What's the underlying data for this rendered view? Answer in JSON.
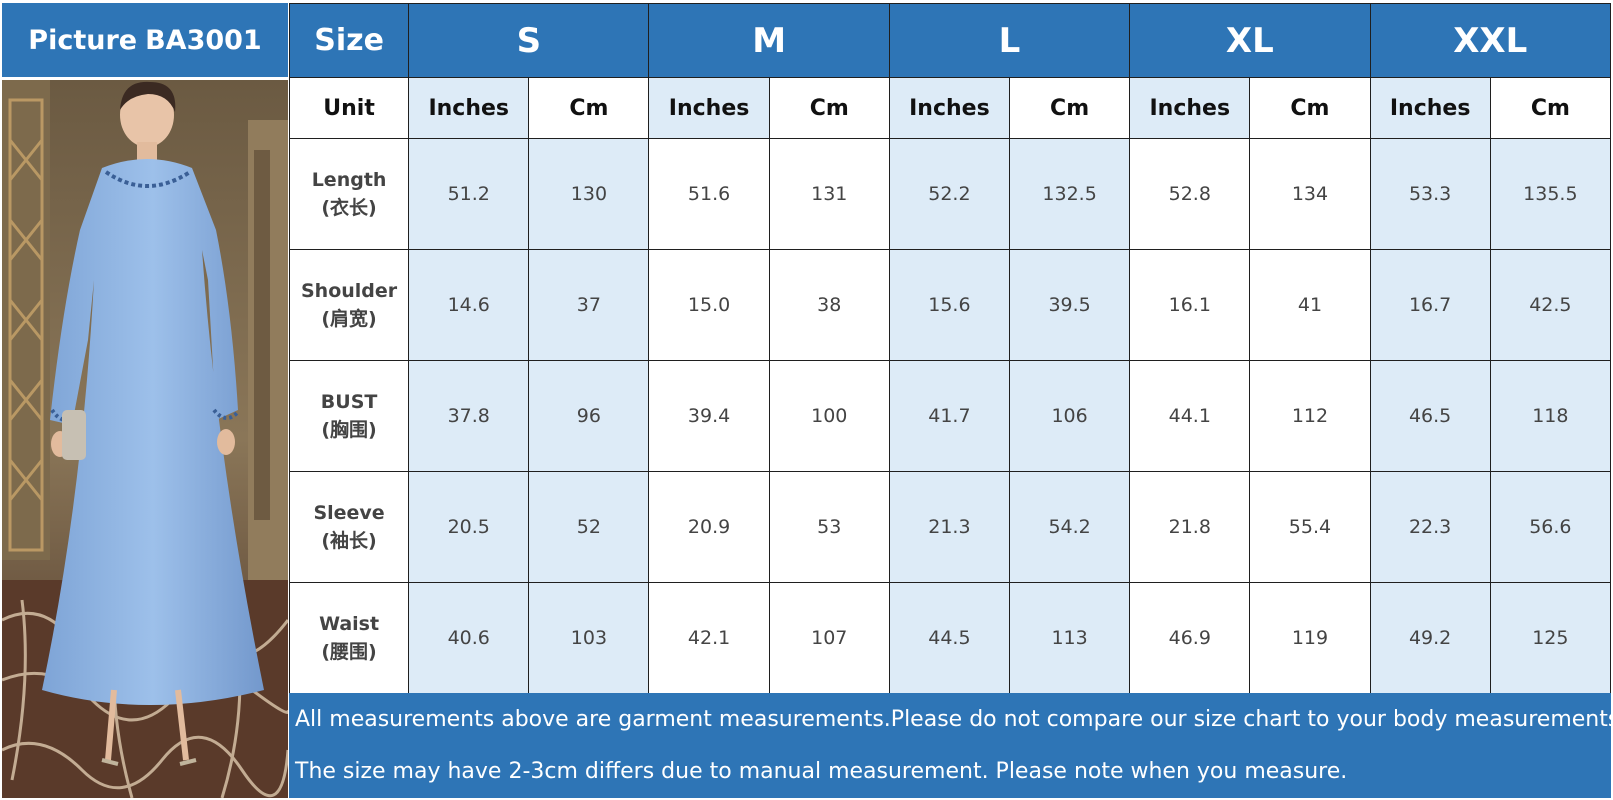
{
  "header": {
    "picture_label": "Picture",
    "model": "BA3001",
    "size_label": "Size",
    "sizes": [
      "S",
      "M",
      "L",
      "XL",
      "XXL"
    ]
  },
  "units": {
    "label": "Unit",
    "columns": [
      "Inches",
      "Cm",
      "Inches",
      "Cm",
      "Inches",
      "Cm",
      "Inches",
      "Cm",
      "Inches",
      "Cm"
    ]
  },
  "rows": [
    {
      "label": "Length",
      "label_cn": "(衣长)",
      "values": [
        "51.2",
        "130",
        "51.6",
        "131",
        "52.2",
        "132.5",
        "52.8",
        "134",
        "53.3",
        "135.5"
      ]
    },
    {
      "label": "Shoulder",
      "label_cn": "(肩宽)",
      "values": [
        "14.6",
        "37",
        "15.0",
        "38",
        "15.6",
        "39.5",
        "16.1",
        "41",
        "16.7",
        "42.5"
      ]
    },
    {
      "label": "BUST",
      "label_cn": "(胸围)",
      "values": [
        "37.8",
        "96",
        "39.4",
        "100",
        "41.7",
        "106",
        "44.1",
        "112",
        "46.5",
        "118"
      ]
    },
    {
      "label": "Sleeve",
      "label_cn": "(袖长)",
      "values": [
        "20.5",
        "52",
        "20.9",
        "53",
        "21.3",
        "54.2",
        "21.8",
        "55.4",
        "22.3",
        "56.6"
      ]
    },
    {
      "label": "Waist",
      "label_cn": "(腰围)",
      "values": [
        "40.6",
        "103",
        "42.1",
        "107",
        "44.5",
        "113",
        "46.9",
        "119",
        "49.2",
        "125"
      ]
    }
  ],
  "notes": [
    "All measurements above are garment measurements.Please do not compare our size chart to your body measurements.",
    "The size may have 2-3cm differs due to manual measurement. Please note when you measure."
  ],
  "colors": {
    "header_blue": "#2e75b6",
    "cell_tint": "#ddebf7",
    "dress_blue": "#8fb3e0"
  },
  "photo": {
    "subject": "woman-in-light-blue-long-dress"
  }
}
